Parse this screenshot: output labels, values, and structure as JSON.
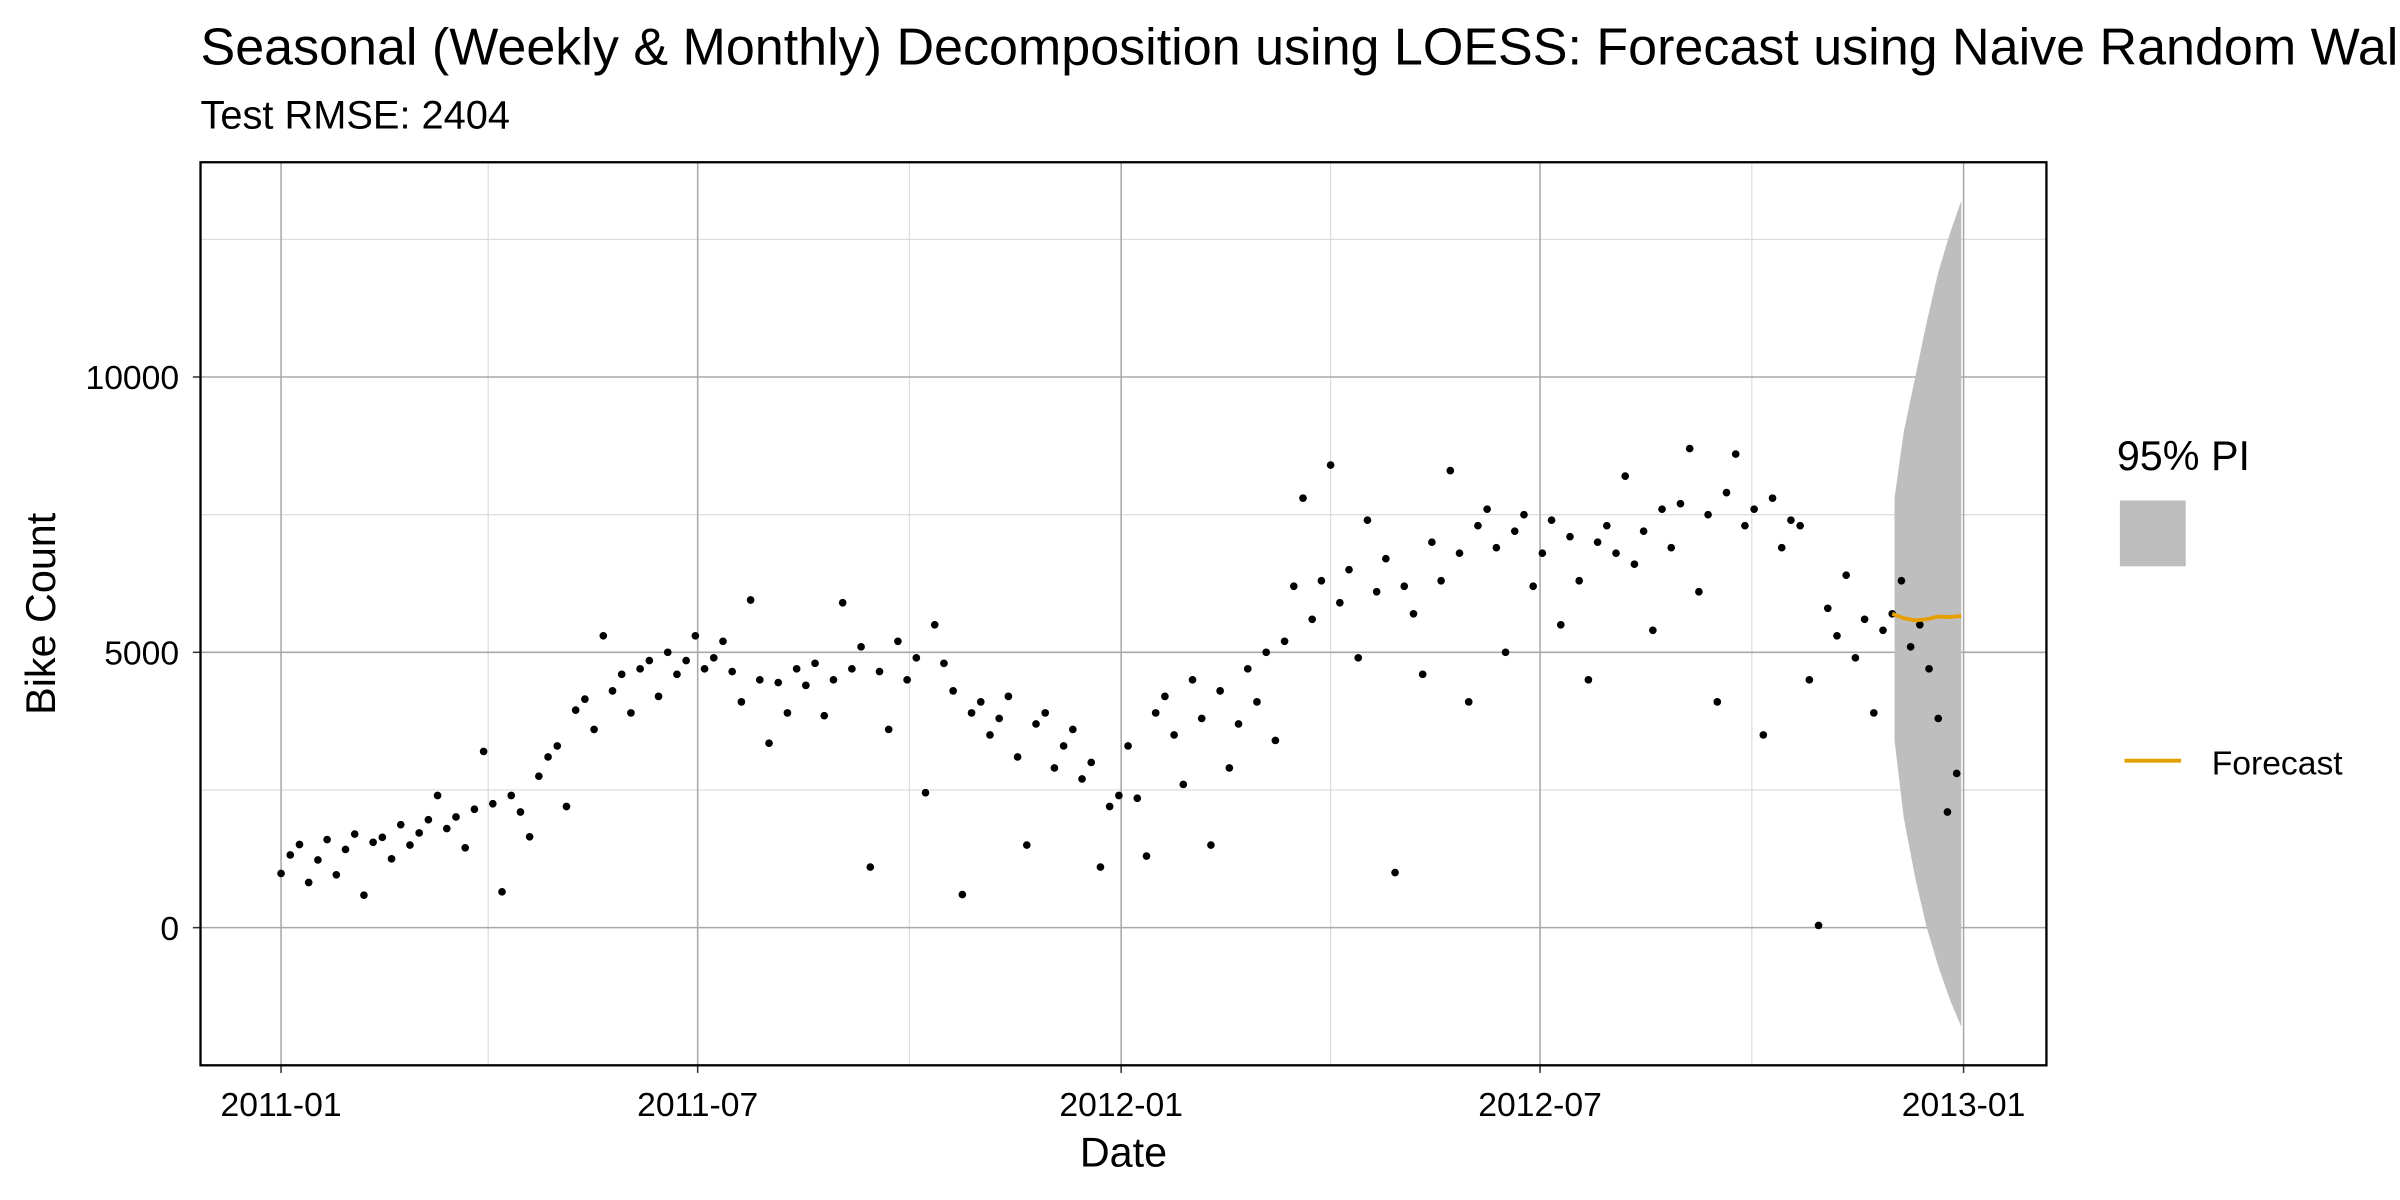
{
  "chart_data": {
    "type": "scatter",
    "title": "Seasonal (Weekly & Monthly) Decomposition using LOESS: Forecast using Naive Random Walk",
    "subtitle": "Test RMSE: 2404",
    "x_label": "Date",
    "y_label": "Bike Count",
    "xlim": [
      -35,
      767
    ],
    "xticks": [
      {
        "value": 0,
        "label": "2011-01"
      },
      {
        "value": 181,
        "label": "2011-07"
      },
      {
        "value": 365,
        "label": "2012-01"
      },
      {
        "value": 547,
        "label": "2012-07"
      },
      {
        "value": 731,
        "label": "2013-01"
      }
    ],
    "xminor": [
      90,
      273,
      456,
      639
    ],
    "ylim": [
      -2500,
      13900
    ],
    "yticks": [
      0,
      5000,
      10000
    ],
    "yminor": [
      2500,
      7500,
      12500
    ],
    "grid": true,
    "band": {
      "name": "95% PI",
      "color": "#bebebe",
      "x": [
        701,
        705,
        710,
        715,
        720,
        725,
        730
      ],
      "lower": [
        3400,
        2000,
        900,
        0,
        -700,
        -1300,
        -1800
      ],
      "upper": [
        7800,
        9000,
        10000,
        11000,
        11900,
        12600,
        13200
      ]
    },
    "series": [
      {
        "type": "scatter",
        "color": "#000000",
        "x": [
          0,
          4,
          8,
          12,
          16,
          20,
          24,
          28,
          32,
          36,
          40,
          44,
          48,
          52,
          56,
          60,
          64,
          68,
          72,
          76,
          80,
          84,
          88,
          92,
          96,
          100,
          104,
          108,
          112,
          116,
          120,
          124,
          128,
          132,
          136,
          140,
          144,
          148,
          152,
          156,
          160,
          164,
          168,
          172,
          176,
          180,
          184,
          188,
          192,
          196,
          200,
          204,
          208,
          212,
          216,
          220,
          224,
          228,
          232,
          236,
          240,
          244,
          248,
          252,
          256,
          260,
          264,
          268,
          272,
          276,
          280,
          284,
          288,
          292,
          296,
          300,
          304,
          308,
          312,
          316,
          320,
          324,
          328,
          332,
          336,
          340,
          344,
          348,
          352,
          356,
          360,
          364,
          368,
          372,
          376,
          380,
          384,
          388,
          392,
          396,
          400,
          404,
          408,
          412,
          416,
          420,
          424,
          428,
          432,
          436,
          440,
          444,
          448,
          452,
          456,
          460,
          464,
          468,
          472,
          476,
          480,
          484,
          488,
          492,
          496,
          500,
          504,
          508,
          512,
          516,
          520,
          524,
          528,
          532,
          536,
          540,
          544,
          548,
          552,
          556,
          560,
          564,
          568,
          572,
          576,
          580,
          584,
          588,
          592,
          596,
          600,
          604,
          608,
          612,
          616,
          620,
          624,
          628,
          632,
          636,
          640,
          644,
          648,
          652,
          656,
          660,
          664,
          668,
          672,
          676,
          680,
          684,
          688,
          692,
          696,
          700,
          704,
          708,
          712,
          716,
          720,
          724,
          728
        ],
        "values": [
          985,
          1320,
          1510,
          820,
          1230,
          1600,
          960,
          1420,
          1700,
          590,
          1550,
          1640,
          1250,
          1870,
          1500,
          1720,
          1960,
          2400,
          1800,
          2010,
          1450,
          2150,
          3200,
          2250,
          650,
          2400,
          2100,
          1650,
          2750,
          3100,
          3300,
          2200,
          3950,
          4150,
          3600,
          5300,
          4300,
          4600,
          3900,
          4700,
          4850,
          4200,
          5000,
          4600,
          4850,
          5300,
          4700,
          4900,
          5200,
          4650,
          4100,
          5950,
          4500,
          3350,
          4450,
          3900,
          4700,
          4400,
          4800,
          3850,
          4500,
          5900,
          4700,
          5100,
          1100,
          4650,
          3600,
          5200,
          4500,
          4900,
          2450,
          5500,
          4800,
          4300,
          600,
          3900,
          4100,
          3500,
          3800,
          4200,
          3100,
          1500,
          3700,
          3900,
          2900,
          3300,
          3600,
          2700,
          3000,
          1100,
          2200,
          2400,
          3300,
          2350,
          1300,
          3900,
          4200,
          3500,
          2600,
          4500,
          3800,
          1500,
          4300,
          2900,
          3700,
          4700,
          4100,
          5000,
          3400,
          5200,
          6200,
          7800,
          5600,
          6300,
          8400,
          5900,
          6500,
          4900,
          7400,
          6100,
          6700,
          1000,
          6200,
          5700,
          4600,
          7000,
          6300,
          8300,
          6800,
          4100,
          7300,
          7600,
          6900,
          5000,
          7200,
          7500,
          6200,
          6800,
          7400,
          5500,
          7100,
          6300,
          4500,
          7000,
          7300,
          6800,
          8200,
          6600,
          7200,
          5400,
          7600,
          6900,
          7700,
          8700,
          6100,
          7500,
          4100,
          7900,
          8600,
          7300,
          7600,
          3500,
          7800,
          6900,
          7400,
          7300,
          4500,
          40,
          5800,
          5300,
          6400,
          4900,
          5600,
          3900,
          5400,
          5700,
          6300,
          5100,
          5500,
          4700,
          3800,
          2100,
          2800
        ]
      },
      {
        "name": "Forecast",
        "type": "line",
        "color": "#E69F00",
        "x": [
          700,
          705,
          710,
          715,
          720,
          725,
          730
        ],
        "values": [
          5700,
          5620,
          5580,
          5600,
          5650,
          5640,
          5660
        ]
      }
    ]
  }
}
